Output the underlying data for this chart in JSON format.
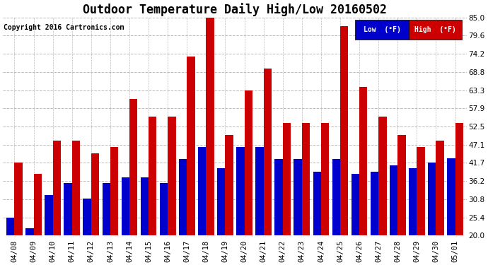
{
  "title": "Outdoor Temperature Daily High/Low 20160502",
  "copyright": "Copyright 2016 Cartronics.com",
  "legend_low_label": "Low  (°F)",
  "legend_high_label": "High  (°F)",
  "legend_low_color": "#0000cc",
  "legend_high_color": "#cc0000",
  "background_color": "#ffffff",
  "plot_bg_color": "#ffffff",
  "grid_color": "#bbbbbb",
  "categories": [
    "04/08",
    "04/09",
    "04/10",
    "04/11",
    "04/12",
    "04/13",
    "04/14",
    "04/15",
    "04/16",
    "04/17",
    "04/18",
    "04/19",
    "04/20",
    "04/21",
    "04/22",
    "04/23",
    "04/24",
    "04/25",
    "04/26",
    "04/27",
    "04/28",
    "04/29",
    "04/30",
    "05/01"
  ],
  "high_values": [
    41.7,
    38.3,
    48.2,
    48.2,
    44.6,
    46.4,
    60.8,
    55.4,
    55.4,
    73.4,
    85.1,
    50.0,
    63.3,
    69.8,
    53.6,
    53.6,
    53.6,
    82.4,
    64.4,
    55.4,
    50.0,
    46.4,
    48.2,
    53.6
  ],
  "low_values": [
    25.4,
    22.1,
    32.0,
    35.6,
    31.0,
    35.6,
    37.4,
    37.4,
    35.6,
    42.8,
    46.4,
    40.0,
    46.4,
    46.4,
    42.8,
    42.8,
    39.0,
    42.8,
    38.3,
    39.0,
    41.0,
    40.0,
    41.7,
    43.0
  ],
  "ylim_min": 20.0,
  "ylim_max": 85.0,
  "yticks": [
    20.0,
    25.4,
    30.8,
    36.2,
    41.7,
    47.1,
    52.5,
    57.9,
    63.3,
    68.8,
    74.2,
    79.6,
    85.0
  ],
  "bar_width": 0.42,
  "title_fontsize": 12,
  "tick_fontsize": 7.5,
  "copyright_fontsize": 7
}
